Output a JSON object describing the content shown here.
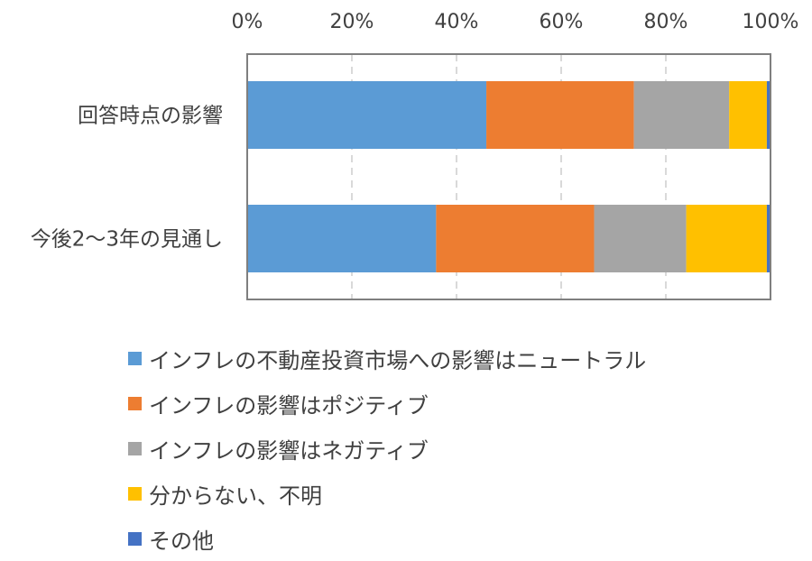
{
  "chart_data": {
    "type": "bar",
    "orientation": "horizontal",
    "stacked": "percent",
    "categories": [
      "回答時点の影響",
      "今後2～3年の見通し"
    ],
    "x_axis": {
      "range": [
        0,
        100
      ],
      "ticks": [
        "0%",
        "20%",
        "40%",
        "60%",
        "80%",
        "100%"
      ],
      "tick_values": [
        0,
        20,
        40,
        60,
        80,
        100
      ],
      "position": "top",
      "grid": "dashed"
    },
    "series": [
      {
        "name": "インフレの不動産投資市場への影響はニュートラル",
        "color": "#5B9BD5",
        "values": [
          45.7,
          36.1
        ]
      },
      {
        "name": "インフレの影響はポジティブ",
        "color": "#ED7D31",
        "values": [
          28.2,
          30.2
        ]
      },
      {
        "name": "インフレの影響はネガティブ",
        "color": "#A5A5A5",
        "values": [
          18.2,
          17.6
        ]
      },
      {
        "name": "分からない、不明",
        "color": "#FFC000",
        "values": [
          7.2,
          15.4
        ]
      },
      {
        "name": "その他",
        "color": "#4472C4",
        "values": [
          0.7,
          0.7
        ]
      }
    ],
    "legend_position": "bottom"
  }
}
